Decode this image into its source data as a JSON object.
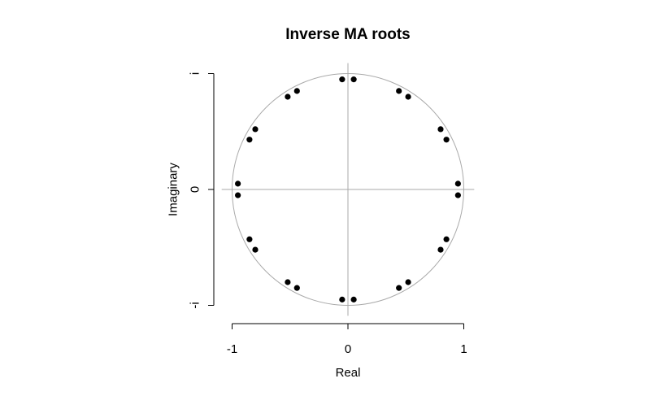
{
  "chart_data": {
    "type": "scatter",
    "title": "Inverse MA roots",
    "xlabel": "Real",
    "ylabel": "Imaginary",
    "xlim": [
      -1,
      1
    ],
    "ylim": [
      -1,
      1
    ],
    "x_ticks": [
      {
        "value": -1,
        "label": "-1"
      },
      {
        "value": 0,
        "label": "0"
      },
      {
        "value": 1,
        "label": "1"
      }
    ],
    "y_ticks": [
      {
        "value": -1,
        "label": "-i"
      },
      {
        "value": 0,
        "label": "0"
      },
      {
        "value": 1,
        "label": "i"
      }
    ],
    "unit_circle": true,
    "reference_lines": {
      "x": 0,
      "y": 0
    },
    "point_color": "#000000",
    "reference_color": "#aaaaaa",
    "points": [
      {
        "x": 0.95,
        "y": 0.05
      },
      {
        "x": 0.95,
        "y": -0.05
      },
      {
        "x": -0.95,
        "y": 0.05
      },
      {
        "x": -0.95,
        "y": -0.05
      },
      {
        "x": 0.05,
        "y": 0.95
      },
      {
        "x": -0.05,
        "y": 0.95
      },
      {
        "x": 0.05,
        "y": -0.95
      },
      {
        "x": -0.05,
        "y": -0.95
      },
      {
        "x": 0.44,
        "y": 0.85
      },
      {
        "x": 0.52,
        "y": 0.8
      },
      {
        "x": -0.44,
        "y": 0.85
      },
      {
        "x": -0.52,
        "y": 0.8
      },
      {
        "x": 0.44,
        "y": -0.85
      },
      {
        "x": 0.52,
        "y": -0.8
      },
      {
        "x": -0.44,
        "y": -0.85
      },
      {
        "x": -0.52,
        "y": -0.8
      },
      {
        "x": 0.8,
        "y": 0.52
      },
      {
        "x": 0.85,
        "y": 0.43
      },
      {
        "x": -0.8,
        "y": 0.52
      },
      {
        "x": -0.85,
        "y": 0.43
      },
      {
        "x": 0.8,
        "y": -0.52
      },
      {
        "x": 0.85,
        "y": -0.43
      },
      {
        "x": -0.8,
        "y": -0.52
      },
      {
        "x": -0.85,
        "y": -0.43
      }
    ]
  }
}
